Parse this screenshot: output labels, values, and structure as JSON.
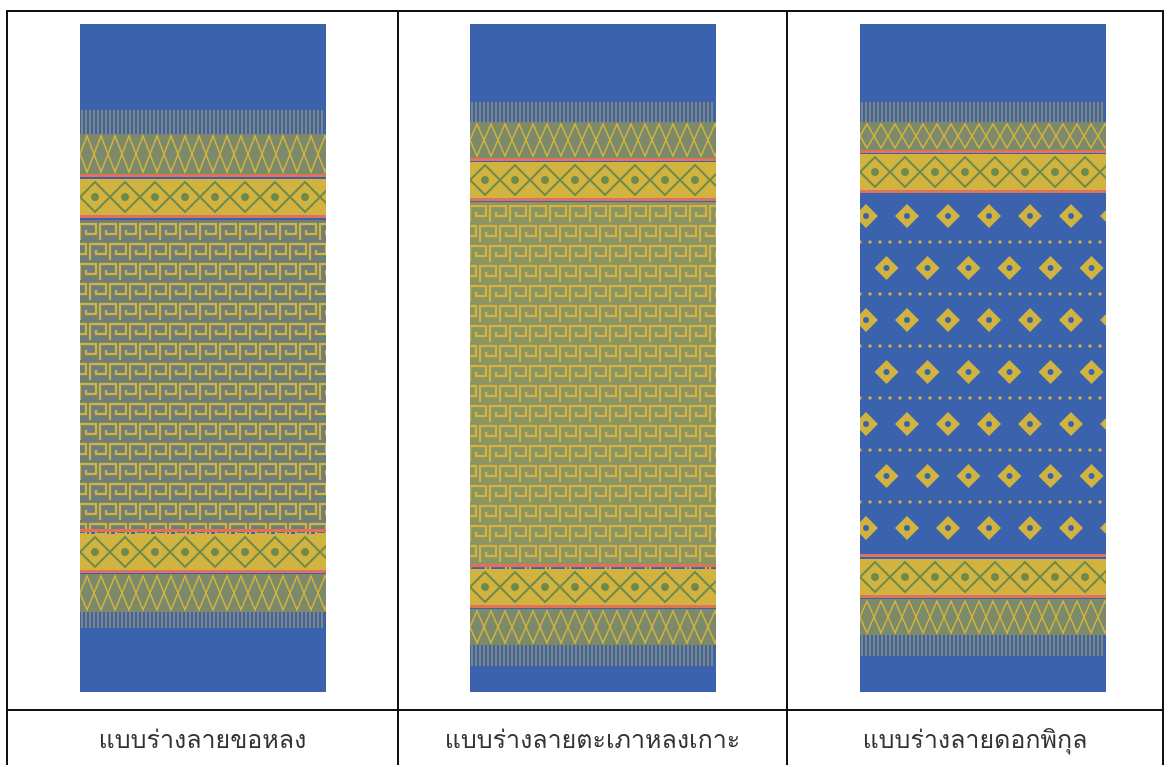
{
  "colors": {
    "blue": "#3a62ad",
    "gold": "#d2b33f",
    "stripe": "#e0725c"
  },
  "panels": [
    {
      "caption": "แบบร่างลายขอหลง",
      "pattern": "key",
      "bands": "short"
    },
    {
      "caption": "แบบร่างลายตะเภาหลงเกาะ",
      "pattern": "diamond-key",
      "bands": "bottom"
    },
    {
      "caption": "แบบร่างลายดอกพิกุล",
      "pattern": "flower",
      "bands": "bottom"
    }
  ]
}
